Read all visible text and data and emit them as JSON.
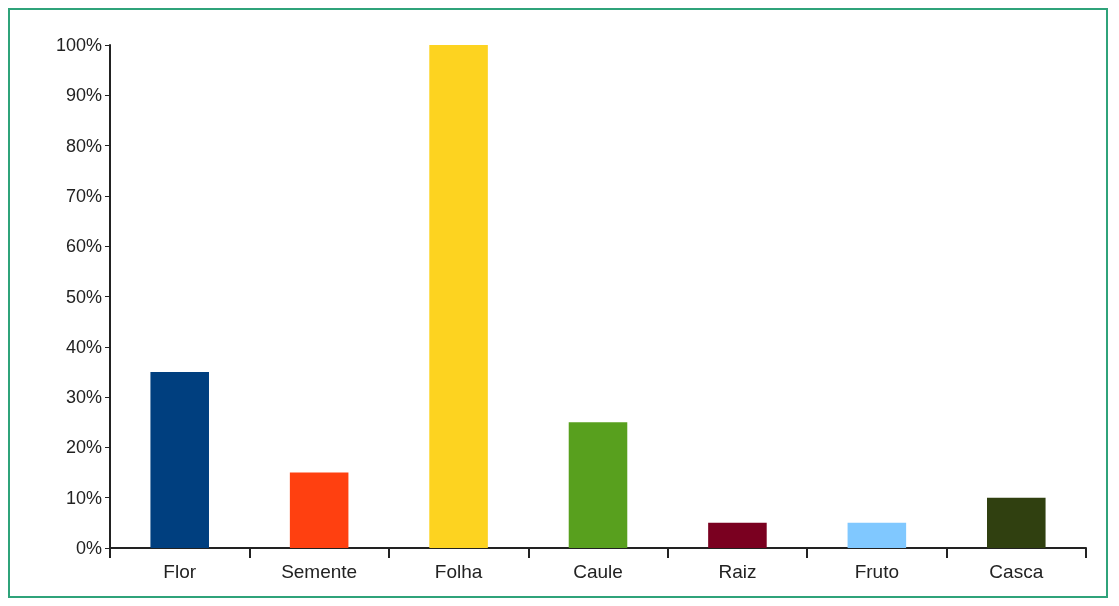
{
  "chart_data": {
    "type": "bar",
    "categories": [
      "Flor",
      "Semente",
      "Folha",
      "Caule",
      "Raiz",
      "Fruto",
      "Casca"
    ],
    "values": [
      35,
      15,
      100,
      25,
      5,
      5,
      10
    ],
    "colors": [
      "#003f7f",
      "#ff4010",
      "#fdd320",
      "#58a01e",
      "#7a0020",
      "#80c8ff",
      "#304010"
    ],
    "ylim": [
      0,
      100
    ],
    "yticks": [
      {
        "value": 0,
        "label": "0%"
      },
      {
        "value": 10,
        "label": "10%"
      },
      {
        "value": 20,
        "label": "20%"
      },
      {
        "value": 30,
        "label": "30%"
      },
      {
        "value": 40,
        "label": "40%"
      },
      {
        "value": 50,
        "label": "50%"
      },
      {
        "value": 60,
        "label": "60%"
      },
      {
        "value": 70,
        "label": "70%"
      },
      {
        "value": 80,
        "label": "80%"
      },
      {
        "value": 90,
        "label": "90%"
      },
      {
        "value": 100,
        "label": "100%"
      }
    ],
    "grid": false
  }
}
